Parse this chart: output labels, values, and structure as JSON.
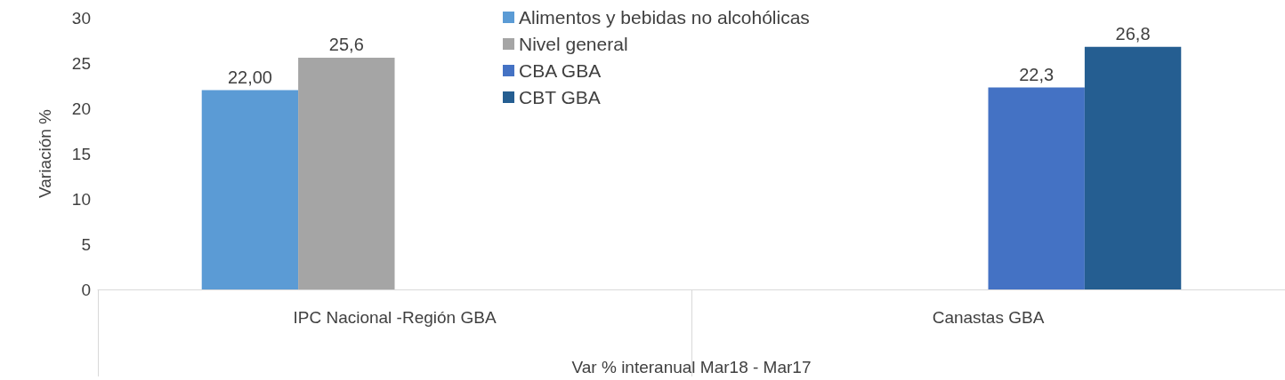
{
  "chart_data": {
    "type": "bar",
    "xlabel": "Var % interanual Mar18 - Mar17",
    "ylabel": "Variación %",
    "categories": [
      "IPC Nacional -Región GBA",
      "Canastas GBA"
    ],
    "series": [
      {
        "name": "Alimentos y bebidas no alcohólicas",
        "color": "#5b9bd5",
        "values": [
          22.0,
          null
        ],
        "value_labels": [
          "22,00",
          null
        ]
      },
      {
        "name": "Nivel general",
        "color": "#a5a5a5",
        "values": [
          25.6,
          null
        ],
        "value_labels": [
          "25,6",
          null
        ]
      },
      {
        "name": "CBA GBA",
        "color": "#4472c4",
        "values": [
          null,
          22.3
        ],
        "value_labels": [
          null,
          "22,3"
        ]
      },
      {
        "name": "CBT GBA",
        "color": "#255e91",
        "values": [
          null,
          26.8
        ],
        "value_labels": [
          null,
          "26,8"
        ]
      }
    ],
    "ylim": [
      0,
      30
    ],
    "yticks": [
      0,
      5,
      10,
      15,
      20,
      25,
      30
    ],
    "grid": false,
    "legend": "top"
  }
}
